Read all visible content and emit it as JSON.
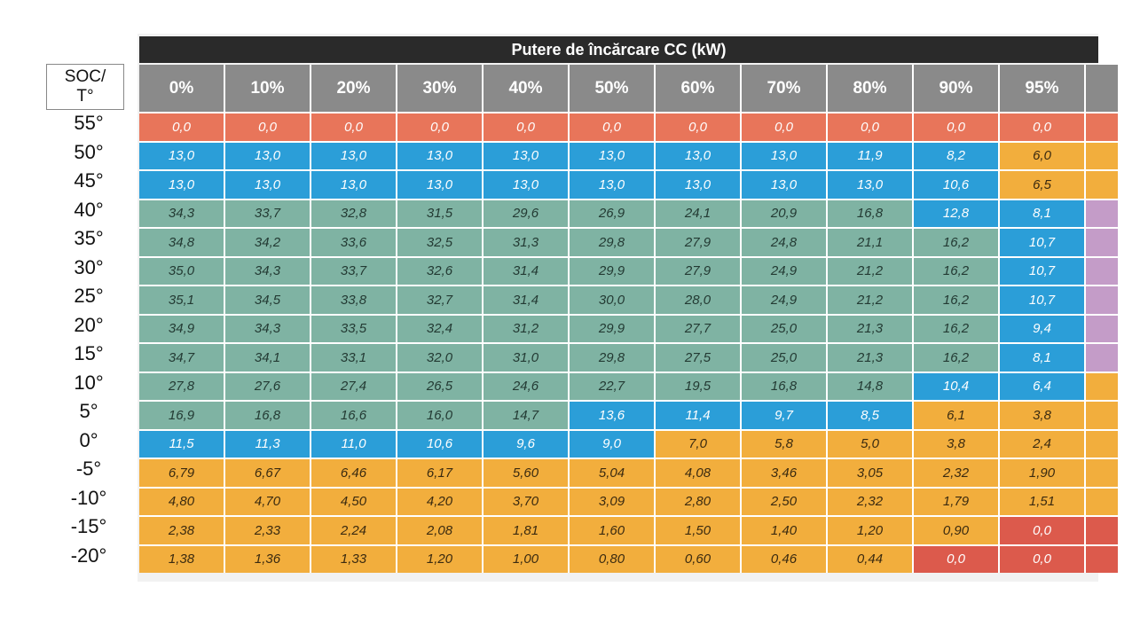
{
  "title": "Putere de încărcare CC (kW)",
  "corner_label": [
    "SOC/",
    "T°"
  ],
  "soc_headers": [
    "0%",
    "10%",
    "20%",
    "30%",
    "40%",
    "50%",
    "60%",
    "70%",
    "80%",
    "90%",
    "95%"
  ],
  "temperatures": [
    "55°",
    "50°",
    "45°",
    "40°",
    "35°",
    "30°",
    "25°",
    "20°",
    "15°",
    "10°",
    "5°",
    "0°",
    "-5°",
    "-10°",
    "-15°",
    "-20°"
  ],
  "rows": [
    [
      "0,0",
      "0,0",
      "0,0",
      "0,0",
      "0,0",
      "0,0",
      "0,0",
      "0,0",
      "0,0",
      "0,0",
      "0,0"
    ],
    [
      "13,0",
      "13,0",
      "13,0",
      "13,0",
      "13,0",
      "13,0",
      "13,0",
      "13,0",
      "11,9",
      "8,2",
      "6,0"
    ],
    [
      "13,0",
      "13,0",
      "13,0",
      "13,0",
      "13,0",
      "13,0",
      "13,0",
      "13,0",
      "13,0",
      "10,6",
      "6,5"
    ],
    [
      "34,3",
      "33,7",
      "32,8",
      "31,5",
      "29,6",
      "26,9",
      "24,1",
      "20,9",
      "16,8",
      "12,8",
      "8,1"
    ],
    [
      "34,8",
      "34,2",
      "33,6",
      "32,5",
      "31,3",
      "29,8",
      "27,9",
      "24,8",
      "21,1",
      "16,2",
      "10,7"
    ],
    [
      "35,0",
      "34,3",
      "33,7",
      "32,6",
      "31,4",
      "29,9",
      "27,9",
      "24,9",
      "21,2",
      "16,2",
      "10,7"
    ],
    [
      "35,1",
      "34,5",
      "33,8",
      "32,7",
      "31,4",
      "30,0",
      "28,0",
      "24,9",
      "21,2",
      "16,2",
      "10,7"
    ],
    [
      "34,9",
      "34,3",
      "33,5",
      "32,4",
      "31,2",
      "29,9",
      "27,7",
      "25,0",
      "21,3",
      "16,2",
      "9,4"
    ],
    [
      "34,7",
      "34,1",
      "33,1",
      "32,0",
      "31,0",
      "29,8",
      "27,5",
      "25,0",
      "21,3",
      "16,2",
      "8,1"
    ],
    [
      "27,8",
      "27,6",
      "27,4",
      "26,5",
      "24,6",
      "22,7",
      "19,5",
      "16,8",
      "14,8",
      "10,4",
      "6,4"
    ],
    [
      "16,9",
      "16,8",
      "16,6",
      "16,0",
      "14,7",
      "13,6",
      "11,4",
      "9,7",
      "8,5",
      "6,1",
      "3,8"
    ],
    [
      "11,5",
      "11,3",
      "11,0",
      "10,6",
      "9,6",
      "9,0",
      "7,0",
      "5,8",
      "5,0",
      "3,8",
      "2,4"
    ],
    [
      "6,79",
      "6,67",
      "6,46",
      "6,17",
      "5,60",
      "5,04",
      "4,08",
      "3,46",
      "3,05",
      "2,32",
      "1,90"
    ],
    [
      "4,80",
      "4,70",
      "4,50",
      "4,20",
      "3,70",
      "3,09",
      "2,80",
      "2,50",
      "2,32",
      "1,79",
      "1,51"
    ],
    [
      "2,38",
      "2,33",
      "2,24",
      "2,08",
      "1,81",
      "1,60",
      "1,50",
      "1,40",
      "1,20",
      "0,90",
      "0,0"
    ],
    [
      "1,38",
      "1,36",
      "1,33",
      "1,20",
      "1,00",
      "0,80",
      "0,60",
      "0,46",
      "0,44",
      "0,0",
      "0,0"
    ]
  ],
  "colors": {
    "red": "#e8755a",
    "red_dark": "#dc5a4c",
    "blue": "#2b9ed8",
    "teal": "#7fb3a3",
    "orange": "#f2ae3d",
    "purple": "#c49cc8",
    "header_gray": "#8a8a8a",
    "title_bar": "#2a2a2a"
  },
  "cell_colors": [
    [
      "red",
      "red",
      "red",
      "red",
      "red",
      "red",
      "red",
      "red",
      "red",
      "red",
      "red",
      "red"
    ],
    [
      "blue",
      "blue",
      "blue",
      "blue",
      "blue",
      "blue",
      "blue",
      "blue",
      "blue",
      "blue",
      "orange",
      "orange"
    ],
    [
      "blue",
      "blue",
      "blue",
      "blue",
      "blue",
      "blue",
      "blue",
      "blue",
      "blue",
      "blue",
      "orange",
      "orange"
    ],
    [
      "teal",
      "teal",
      "teal",
      "teal",
      "teal",
      "teal",
      "teal",
      "teal",
      "teal",
      "blue",
      "blue",
      "purple"
    ],
    [
      "teal",
      "teal",
      "teal",
      "teal",
      "teal",
      "teal",
      "teal",
      "teal",
      "teal",
      "teal",
      "blue",
      "purple"
    ],
    [
      "teal",
      "teal",
      "teal",
      "teal",
      "teal",
      "teal",
      "teal",
      "teal",
      "teal",
      "teal",
      "blue",
      "purple"
    ],
    [
      "teal",
      "teal",
      "teal",
      "teal",
      "teal",
      "teal",
      "teal",
      "teal",
      "teal",
      "teal",
      "blue",
      "purple"
    ],
    [
      "teal",
      "teal",
      "teal",
      "teal",
      "teal",
      "teal",
      "teal",
      "teal",
      "teal",
      "teal",
      "blue",
      "purple"
    ],
    [
      "teal",
      "teal",
      "teal",
      "teal",
      "teal",
      "teal",
      "teal",
      "teal",
      "teal",
      "teal",
      "blue",
      "purple"
    ],
    [
      "teal",
      "teal",
      "teal",
      "teal",
      "teal",
      "teal",
      "teal",
      "teal",
      "teal",
      "blue",
      "blue",
      "orange"
    ],
    [
      "teal",
      "teal",
      "teal",
      "teal",
      "teal",
      "blue",
      "blue",
      "blue",
      "blue",
      "orange",
      "orange",
      "orange"
    ],
    [
      "blue",
      "blue",
      "blue",
      "blue",
      "blue",
      "blue",
      "orange",
      "orange",
      "orange",
      "orange",
      "orange",
      "orange"
    ],
    [
      "orange",
      "orange",
      "orange",
      "orange",
      "orange",
      "orange",
      "orange",
      "orange",
      "orange",
      "orange",
      "orange",
      "orange"
    ],
    [
      "orange",
      "orange",
      "orange",
      "orange",
      "orange",
      "orange",
      "orange",
      "orange",
      "orange",
      "orange",
      "orange",
      "orange"
    ],
    [
      "orange",
      "orange",
      "orange",
      "orange",
      "orange",
      "orange",
      "orange",
      "orange",
      "orange",
      "orange",
      "red_dark",
      "red_dark"
    ],
    [
      "orange",
      "orange",
      "orange",
      "orange",
      "orange",
      "orange",
      "orange",
      "orange",
      "orange",
      "red_dark",
      "red_dark",
      "red_dark"
    ]
  ]
}
